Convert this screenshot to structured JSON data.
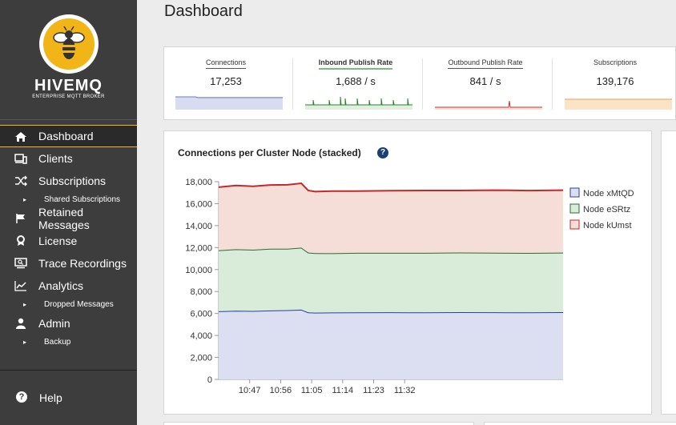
{
  "brand": {
    "name": "HIVEMQ",
    "tagline": "ENTERPRISE MQTT BROKER"
  },
  "nav": {
    "items": [
      {
        "label": "Dashboard",
        "icon": "home-icon",
        "active": true
      },
      {
        "label": "Clients",
        "icon": "devices-icon"
      },
      {
        "label": "Subscriptions",
        "icon": "shuffle-icon"
      },
      {
        "label": "Shared Subscriptions",
        "sub": true
      },
      {
        "label": "Retained Messages",
        "icon": "flag-icon"
      },
      {
        "label": "License",
        "icon": "award-icon"
      },
      {
        "label": "Trace Recordings",
        "icon": "monitor-search-icon"
      },
      {
        "label": "Analytics",
        "icon": "line-chart-icon"
      },
      {
        "label": "Dropped Messages",
        "sub": true
      },
      {
        "label": "Admin",
        "icon": "user-icon"
      },
      {
        "label": "Backup",
        "sub": true
      }
    ],
    "help": "Help"
  },
  "page": {
    "title": "Dashboard"
  },
  "stats": [
    {
      "label": "Connections",
      "value": "17,253",
      "color": "#6b7bc4",
      "fill": "#d8dcf0"
    },
    {
      "label": "Inbound Publish Rate",
      "value": "1,688 / s",
      "color": "#2e7d32",
      "fill": "#dfeedd",
      "active": true
    },
    {
      "label": "Outbound Publish Rate",
      "value": "841 / s",
      "color": "#d32f2f",
      "fill": "#f7dcd8"
    },
    {
      "label": "Subscriptions",
      "value": "139,176",
      "color": "#f0a050",
      "fill": "#fbe3c8"
    }
  ],
  "chart": {
    "title": "Connections per Cluster Node (stacked)",
    "help": "?"
  },
  "chart_data": {
    "type": "area",
    "stacked": true,
    "title": "Connections per Cluster Node (stacked)",
    "x_ticks": [
      "10:47",
      "10:56",
      "11:05",
      "11:14",
      "11:23",
      "11:32"
    ],
    "y_ticks": [
      0,
      2000,
      4000,
      6000,
      8000,
      10000,
      12000,
      14000,
      16000,
      18000
    ],
    "ylim": [
      0,
      18000
    ],
    "legend_position": "right",
    "x_minutes": [
      0,
      5,
      10,
      15,
      20,
      24,
      26,
      28,
      33,
      40,
      50,
      60,
      70,
      80,
      90,
      100
    ],
    "series": [
      {
        "name": "Node xMtQD",
        "color": "#2c3ea0",
        "fill": "#dcdff2",
        "values": [
          6200,
          6250,
          6230,
          6280,
          6300,
          6350,
          6100,
          6080,
          6090,
          6100,
          6110,
          6100,
          6120,
          6110,
          6100,
          6120
        ]
      },
      {
        "name": "Node eSRtz",
        "color": "#2e6b35",
        "fill": "#d9ebd9",
        "values": [
          5550,
          5600,
          5580,
          5620,
          5600,
          5650,
          5450,
          5420,
          5400,
          5420,
          5410,
          5420,
          5430,
          5420,
          5410,
          5420
        ]
      },
      {
        "name": "Node kUmst",
        "color": "#c62828",
        "fill": "#f5ddd8",
        "values": [
          5750,
          5800,
          5770,
          5800,
          5820,
          5850,
          5650,
          5600,
          5650,
          5620,
          5660,
          5680,
          5650,
          5700,
          5680,
          5690
        ]
      }
    ]
  }
}
